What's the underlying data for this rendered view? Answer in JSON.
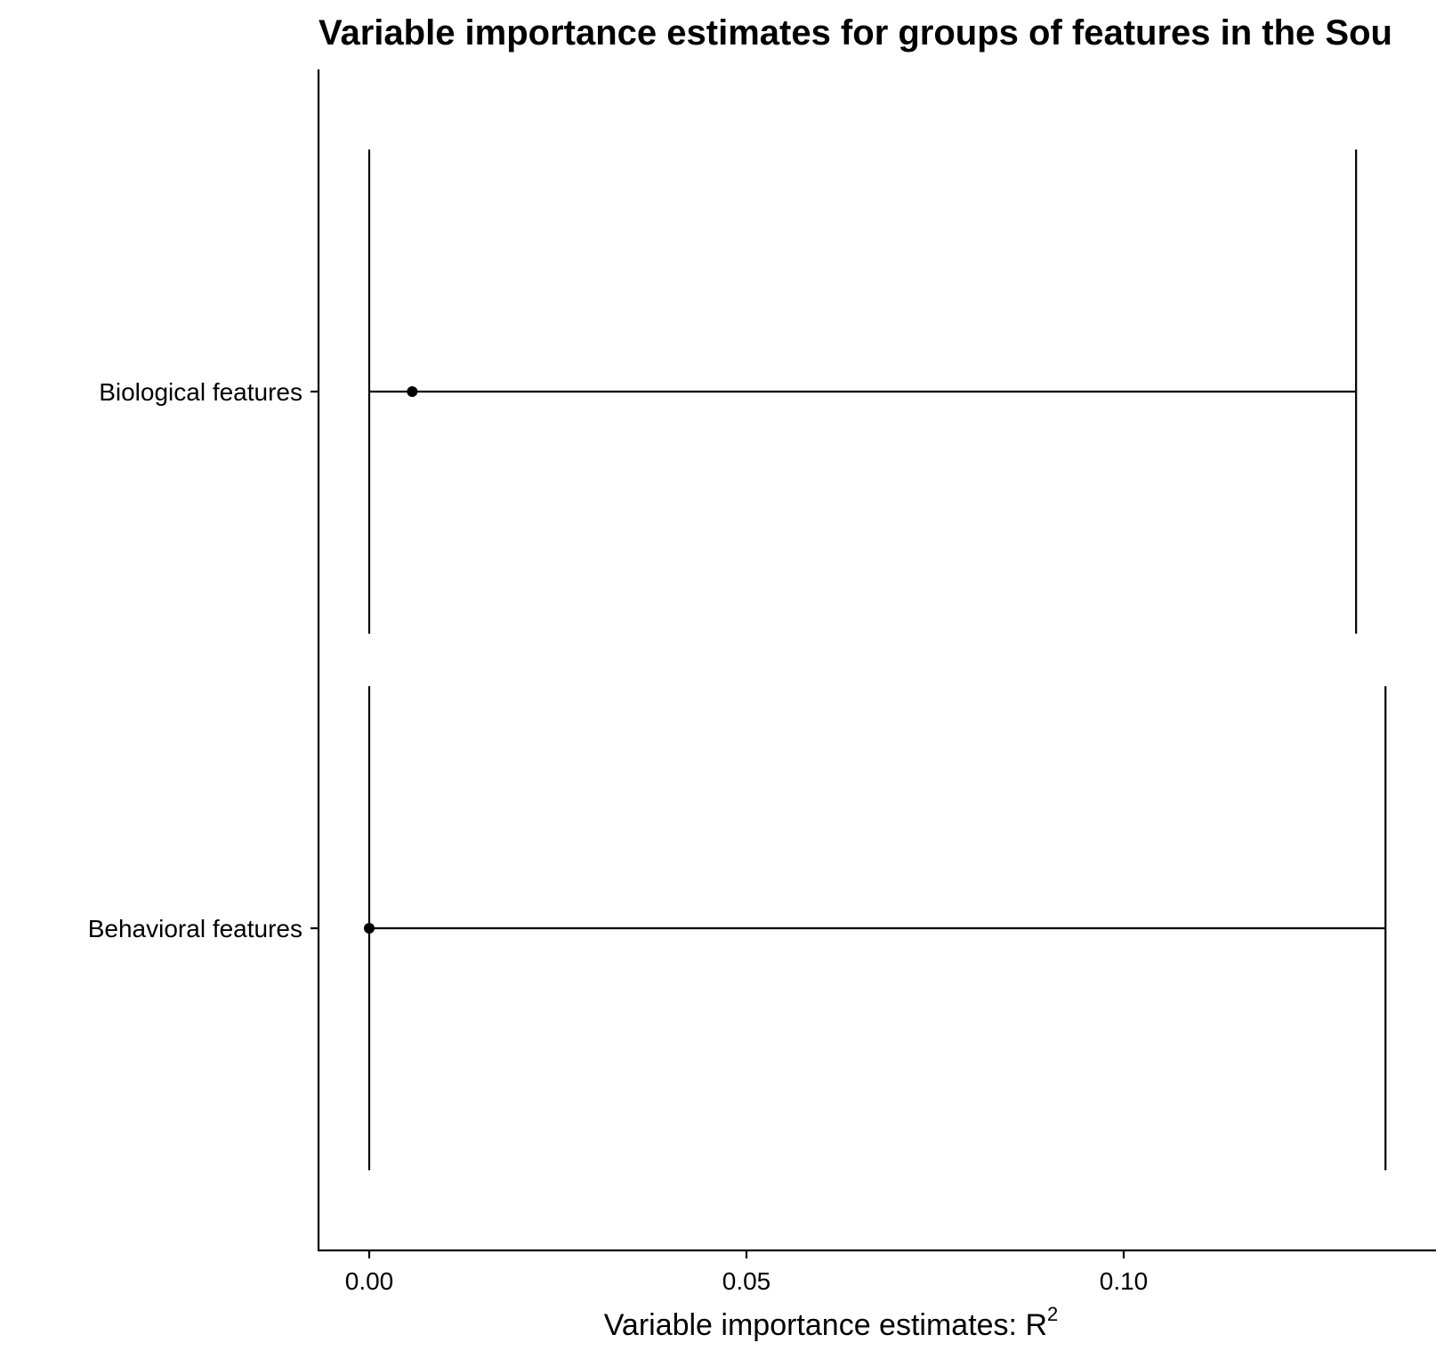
{
  "chart_data": {
    "type": "errorbar",
    "title": "Variable importance estimates for groups of features in the Sou",
    "xlabel": "Variable importance estimates: R",
    "xlabel_superscript": "2",
    "ylabel": "",
    "xlim": [
      -0.0068,
      0.1415
    ],
    "x_ticks": [
      0.0,
      0.05,
      0.1
    ],
    "x_tick_labels": [
      "0.00",
      "0.05",
      "0.10"
    ],
    "categories": [
      "Biological features",
      "Behavioral features"
    ],
    "estimates": [
      0.0057,
      0.0
    ],
    "ci_lower": [
      0.0,
      0.0
    ],
    "ci_upper": [
      0.1308,
      0.1347
    ],
    "grid": false,
    "legend": "none",
    "colors": {
      "ink": "#000000",
      "background": "#ffffff"
    }
  }
}
